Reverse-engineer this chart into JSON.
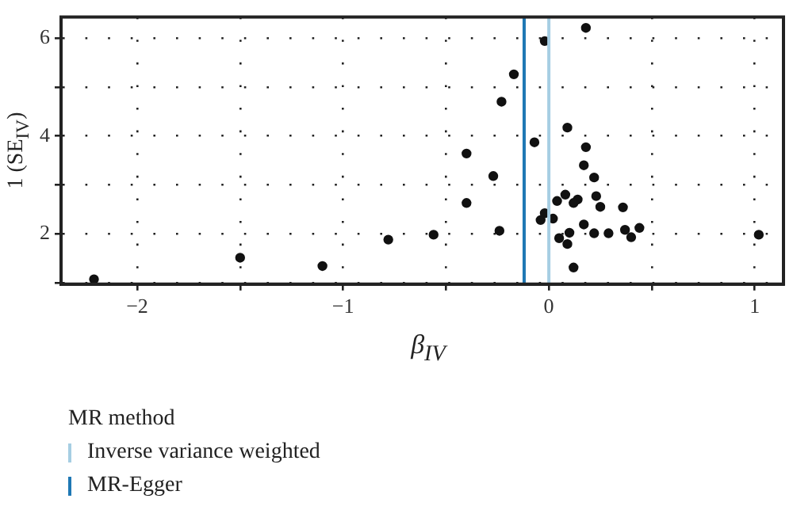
{
  "chart_data": {
    "type": "scatter",
    "xlabel": "β$_{IV}$",
    "ylabel": "1 (SE$_{IV}$)",
    "legend_title": "MR method",
    "legend": "bottom",
    "xlim": [
      -2.37,
      1.14
    ],
    "ylim": [
      0.97,
      6.43
    ],
    "xticks": [
      -2,
      {
        "value": -1.5,
        "label": null
      },
      -1,
      {
        "value": -0.5,
        "label": null
      },
      0,
      {
        "value": 0.5,
        "label": null
      },
      1
    ],
    "yticks": [
      {
        "value": 1,
        "label": null
      },
      2,
      {
        "value": 3,
        "label": null
      },
      4,
      {
        "value": 5,
        "label": null
      },
      6
    ],
    "grid": true,
    "marker": "circle",
    "series": [
      {
        "color": "#111111",
        "x": [
          -2.21,
          -1.5,
          -1.1,
          -0.78,
          0.18,
          -0.02,
          -0.17,
          -0.23,
          0.09,
          -0.07,
          0.18,
          -0.4,
          0.17,
          0.22,
          -0.27,
          0.23,
          0.08,
          0.04,
          0.14,
          0.12,
          -0.4,
          0.25,
          0.36,
          -0.02,
          -0.04,
          0.02,
          0.17,
          0.44,
          0.37,
          -0.24,
          0.1,
          0.22,
          0.29,
          -0.56,
          0.4,
          0.05,
          0.09,
          0.12,
          1.02
        ],
        "values": [
          1.07,
          1.51,
          1.34,
          1.88,
          6.21,
          5.94,
          5.26,
          4.7,
          4.17,
          3.87,
          3.77,
          3.64,
          3.4,
          3.15,
          3.18,
          2.77,
          2.8,
          2.67,
          2.7,
          2.63,
          2.63,
          2.55,
          2.54,
          2.42,
          2.28,
          2.31,
          2.19,
          2.12,
          2.08,
          2.06,
          2.02,
          2.01,
          2.01,
          1.98,
          1.93,
          1.91,
          1.79,
          1.31,
          1.98
        ]
      }
    ],
    "ref_lines": [
      {
        "axis": "x",
        "value": 0,
        "label": "Inverse variance weighted",
        "color": "#a6cee3",
        "line_style": "solid"
      },
      {
        "axis": "x",
        "value": -0.12,
        "label": "MR-Egger",
        "color": "#1f78b4",
        "line_style": "solid"
      }
    ]
  }
}
